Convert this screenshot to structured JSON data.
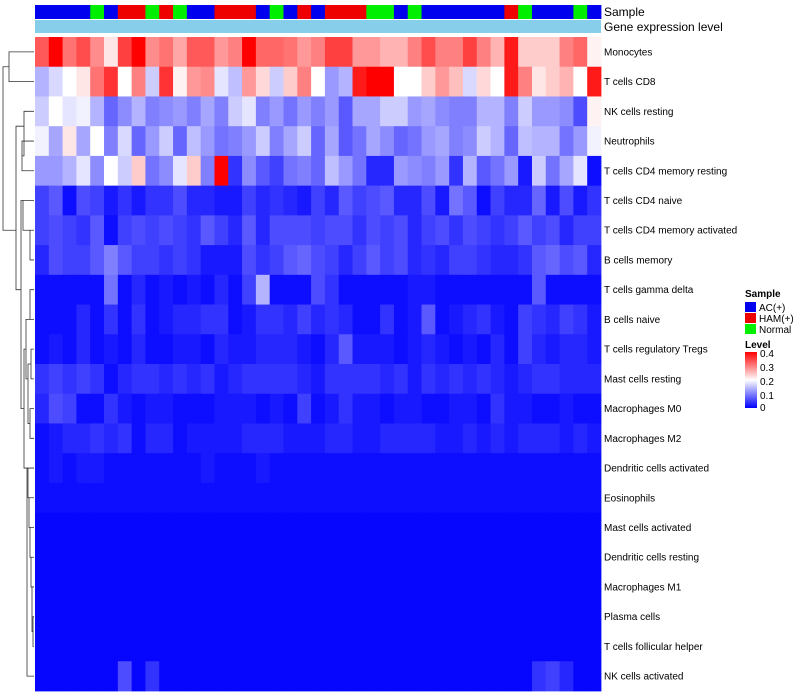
{
  "chart_data": {
    "type": "heatmap",
    "annotation_labels": [
      "Sample",
      "Gene expression level"
    ],
    "sample_legend": {
      "title": "Sample",
      "entries": [
        {
          "label": "AC(+)",
          "color": "#0000ee"
        },
        {
          "label": "HAM(+)",
          "color": "#ee0000"
        },
        {
          "label": "Normal",
          "color": "#00ee00"
        }
      ]
    },
    "level_legend": {
      "title": "Level",
      "ticks": [
        "0.4",
        "0.3",
        "0.2",
        "0.1",
        "0"
      ],
      "tick_values": [
        0.4,
        0.3,
        0.2,
        0.1,
        0
      ],
      "range": [
        0,
        0.4
      ],
      "colors": [
        "#0000ff",
        "#ffffff",
        "#ff0000"
      ]
    },
    "expression_bar_color": "#87ceeb",
    "sample_groups": "AAAANAHHNHNAAHHHANAHAHHHNNANAAAAAAHNAAANA",
    "rows": [
      {
        "name": "Monocytes",
        "values": [
          0.33,
          0.4,
          0.31,
          0.34,
          0.29,
          0.22,
          0.35,
          0.4,
          0.29,
          0.31,
          0.27,
          0.33,
          0.33,
          0.28,
          0.3,
          0.4,
          0.32,
          0.32,
          0.31,
          0.28,
          0.3,
          0.35,
          0.35,
          0.28,
          0.28,
          0.26,
          0.26,
          0.3,
          0.34,
          0.3,
          0.3,
          0.35,
          0.3,
          0.26,
          0.38,
          0.24,
          0.24,
          0.24,
          0.3,
          0.32,
          0.21
        ]
      },
      {
        "name": "T cells CD8",
        "values": [
          0.14,
          0.17,
          0.2,
          0.22,
          0.31,
          0.36,
          0.2,
          0.3,
          0.16,
          0.36,
          0.21,
          0.28,
          0.29,
          0.18,
          0.15,
          0.28,
          0.23,
          0.16,
          0.24,
          0.3,
          0.2,
          0.12,
          0.14,
          0.38,
          0.4,
          0.4,
          0.2,
          0.2,
          0.24,
          0.28,
          0.25,
          0.17,
          0.23,
          0.2,
          0.38,
          0.3,
          0.22,
          0.24,
          0.26,
          0.2,
          0.38
        ]
      },
      {
        "name": "NK cells resting",
        "values": [
          0.16,
          0.2,
          0.18,
          0.19,
          0.14,
          0.08,
          0.11,
          0.14,
          0.1,
          0.11,
          0.12,
          0.1,
          0.13,
          0.1,
          0.16,
          0.18,
          0.1,
          0.12,
          0.09,
          0.12,
          0.1,
          0.12,
          0.07,
          0.13,
          0.13,
          0.16,
          0.16,
          0.12,
          0.13,
          0.11,
          0.1,
          0.1,
          0.14,
          0.14,
          0.1,
          0.16,
          0.12,
          0.12,
          0.11,
          0.06,
          0.21
        ]
      },
      {
        "name": "Neutrophils",
        "values": [
          0.19,
          0.13,
          0.22,
          0.13,
          0.2,
          0.1,
          0.17,
          0.08,
          0.12,
          0.16,
          0.08,
          0.15,
          0.12,
          0.09,
          0.1,
          0.12,
          0.16,
          0.1,
          0.13,
          0.16,
          0.08,
          0.13,
          0.07,
          0.09,
          0.13,
          0.11,
          0.08,
          0.09,
          0.12,
          0.13,
          0.1,
          0.11,
          0.16,
          0.14,
          0.08,
          0.15,
          0.14,
          0.14,
          0.09,
          0.12,
          0.19
        ]
      },
      {
        "name": "T cells CD4 memory resting",
        "values": [
          0.12,
          0.12,
          0.14,
          0.18,
          0.11,
          0.2,
          0.16,
          0.24,
          0.09,
          0.11,
          0.18,
          0.24,
          0.1,
          0.4,
          0.04,
          0.11,
          0.07,
          0.05,
          0.09,
          0.1,
          0.08,
          0.15,
          0.12,
          0.09,
          0.03,
          0.03,
          0.12,
          0.11,
          0.1,
          0.12,
          0.04,
          0.14,
          0.07,
          0.09,
          0.12,
          0.02,
          0.16,
          0.09,
          0.13,
          0.18,
          0.01
        ]
      },
      {
        "name": "T cells CD4 naive",
        "values": [
          0.05,
          0.07,
          0.01,
          0.06,
          0.05,
          0.02,
          0.04,
          0.02,
          0.04,
          0.04,
          0.06,
          0.03,
          0.03,
          0.02,
          0.02,
          0.05,
          0.03,
          0.04,
          0.03,
          0.02,
          0.05,
          0.03,
          0.07,
          0.05,
          0.06,
          0.07,
          0.03,
          0.03,
          0.06,
          0.02,
          0.09,
          0.07,
          0.01,
          0.05,
          0.03,
          0.03,
          0.08,
          0.02,
          0.06,
          0.02,
          0.04
        ]
      },
      {
        "name": "T cells CD4 memory activated",
        "values": [
          0.05,
          0.06,
          0.05,
          0.04,
          0.07,
          0.01,
          0.05,
          0.06,
          0.05,
          0.06,
          0.05,
          0.04,
          0.07,
          0.05,
          0.03,
          0.07,
          0.03,
          0.06,
          0.06,
          0.06,
          0.05,
          0.06,
          0.06,
          0.04,
          0.06,
          0.05,
          0.06,
          0.03,
          0.05,
          0.06,
          0.04,
          0.06,
          0.05,
          0.04,
          0.05,
          0.07,
          0.05,
          0.06,
          0.03,
          0.05,
          0.05
        ]
      },
      {
        "name": "B cells memory",
        "values": [
          0.03,
          0.06,
          0.05,
          0.05,
          0.07,
          0.1,
          0.07,
          0.05,
          0.05,
          0.04,
          0.05,
          0.04,
          0.02,
          0.02,
          0.02,
          0.06,
          0.04,
          0.05,
          0.07,
          0.08,
          0.06,
          0.05,
          0.03,
          0.05,
          0.07,
          0.05,
          0.06,
          0.03,
          0.04,
          0.03,
          0.05,
          0.05,
          0.04,
          0.03,
          0.03,
          0.04,
          0.07,
          0.08,
          0.06,
          0.07,
          0.03
        ]
      },
      {
        "name": "T cells gamma delta",
        "values": [
          0.01,
          0.01,
          0.01,
          0.01,
          0.01,
          0.09,
          0.01,
          0.03,
          0.01,
          0.02,
          0.01,
          0.02,
          0.01,
          0.03,
          0.01,
          0.05,
          0.14,
          0.01,
          0.01,
          0.01,
          0.06,
          0.04,
          0.01,
          0.01,
          0.01,
          0.01,
          0.01,
          0.02,
          0.02,
          0.01,
          0.01,
          0.01,
          0.01,
          0.01,
          0.01,
          0.01,
          0.07,
          0.01,
          0.01,
          0.01,
          0.01
        ]
      },
      {
        "name": "B cells naive",
        "values": [
          0.01,
          0.01,
          0.01,
          0.03,
          0.01,
          0.04,
          0.01,
          0.04,
          0.01,
          0.02,
          0.03,
          0.03,
          0.04,
          0.04,
          0.01,
          0.02,
          0.04,
          0.04,
          0.03,
          0.05,
          0.03,
          0.04,
          0.03,
          0.01,
          0.01,
          0.04,
          0.01,
          0.02,
          0.07,
          0.01,
          0.02,
          0.03,
          0.04,
          0.02,
          0.01,
          0.05,
          0.04,
          0.03,
          0.05,
          0.04,
          0.02
        ]
      },
      {
        "name": "T cells regulatory  Tregs",
        "values": [
          0.01,
          0.02,
          0.01,
          0.03,
          0.01,
          0.02,
          0.01,
          0.03,
          0.01,
          0.01,
          0.02,
          0.02,
          0.01,
          0.03,
          0.02,
          0.02,
          0.03,
          0.03,
          0.03,
          0.02,
          0.01,
          0.03,
          0.07,
          0.02,
          0.02,
          0.02,
          0.01,
          0.02,
          0.03,
          0.02,
          0.01,
          0.02,
          0.01,
          0.03,
          0.01,
          0.05,
          0.03,
          0.02,
          0.03,
          0.03,
          0.02
        ]
      },
      {
        "name": "Mast cells resting",
        "values": [
          0.04,
          0.05,
          0.04,
          0.05,
          0.04,
          0.01,
          0.03,
          0.04,
          0.04,
          0.03,
          0.04,
          0.03,
          0.04,
          0.02,
          0.03,
          0.04,
          0.04,
          0.04,
          0.04,
          0.03,
          0.02,
          0.04,
          0.04,
          0.04,
          0.04,
          0.03,
          0.04,
          0.02,
          0.04,
          0.03,
          0.04,
          0.03,
          0.04,
          0.03,
          0.02,
          0.03,
          0.04,
          0.04,
          0.03,
          0.03,
          0.03
        ]
      },
      {
        "name": "Macrophages M0",
        "values": [
          0.03,
          0.06,
          0.05,
          0.01,
          0.01,
          0.04,
          0.02,
          0.01,
          0.02,
          0.02,
          0.01,
          0.01,
          0.01,
          0.02,
          0.02,
          0.02,
          0.01,
          0.02,
          0.01,
          0.05,
          0.01,
          0.02,
          0.04,
          0.02,
          0.02,
          0.01,
          0.02,
          0.02,
          0.01,
          0.01,
          0.02,
          0.02,
          0.01,
          0.04,
          0.02,
          0.02,
          0.01,
          0.01,
          0.02,
          0.01,
          0.01
        ]
      },
      {
        "name": "Macrophages M2",
        "values": [
          0.01,
          0.02,
          0.03,
          0.03,
          0.04,
          0.03,
          0.04,
          0.01,
          0.03,
          0.03,
          0.01,
          0.02,
          0.02,
          0.02,
          0.02,
          0.03,
          0.03,
          0.03,
          0.02,
          0.02,
          0.02,
          0.03,
          0.03,
          0.02,
          0.02,
          0.03,
          0.03,
          0.03,
          0.03,
          0.02,
          0.02,
          0.03,
          0.02,
          0.03,
          0.02,
          0.03,
          0.03,
          0.03,
          0.02,
          0.03,
          0.02
        ]
      },
      {
        "name": "Dendritic cells activated",
        "values": [
          0.01,
          0.02,
          0.01,
          0.02,
          0.02,
          0.01,
          0.01,
          0.01,
          0.01,
          0.01,
          0.01,
          0.01,
          0.02,
          0.01,
          0.01,
          0.01,
          0.02,
          0.01,
          0.01,
          0.01,
          0.01,
          0.01,
          0.01,
          0.01,
          0.01,
          0.01,
          0.01,
          0.01,
          0.01,
          0.01,
          0.01,
          0.01,
          0.01,
          0.01,
          0.01,
          0.01,
          0.01,
          0.01,
          0.01,
          0.01,
          0.01
        ]
      },
      {
        "name": "Eosinophils",
        "values": [
          0.01,
          0.01,
          0.01,
          0.01,
          0.01,
          0.01,
          0.01,
          0.01,
          0.01,
          0.01,
          0.01,
          0.01,
          0.01,
          0.01,
          0.01,
          0.01,
          0.01,
          0.01,
          0.01,
          0.01,
          0.01,
          0.01,
          0.01,
          0.01,
          0.01,
          0.01,
          0.01,
          0.01,
          0.01,
          0.01,
          0.01,
          0.01,
          0.01,
          0.01,
          0.01,
          0.01,
          0.01,
          0.01,
          0.01,
          0.01,
          0.01
        ]
      },
      {
        "name": "Mast cells activated",
        "values": [
          0.005,
          0.005,
          0.005,
          0.005,
          0.005,
          0.005,
          0.005,
          0.005,
          0.005,
          0.005,
          0.005,
          0.005,
          0.005,
          0.005,
          0.005,
          0.005,
          0.005,
          0.005,
          0.005,
          0.005,
          0.005,
          0.005,
          0.005,
          0.005,
          0.005,
          0.005,
          0.005,
          0.005,
          0.005,
          0.005,
          0.005,
          0.005,
          0.005,
          0.005,
          0.005,
          0.005,
          0.005,
          0.005,
          0.005,
          0.005,
          0.005
        ]
      },
      {
        "name": "Dendritic cells resting",
        "values": [
          0.005,
          0.005,
          0.005,
          0.005,
          0.005,
          0.005,
          0.005,
          0.005,
          0.005,
          0.005,
          0.005,
          0.005,
          0.005,
          0.005,
          0.005,
          0.005,
          0.005,
          0.005,
          0.005,
          0.005,
          0.005,
          0.005,
          0.005,
          0.005,
          0.005,
          0.005,
          0.005,
          0.005,
          0.005,
          0.005,
          0.005,
          0.005,
          0.005,
          0.005,
          0.005,
          0.005,
          0.005,
          0.005,
          0.005,
          0.005,
          0.005
        ]
      },
      {
        "name": "Macrophages M1",
        "values": [
          0.005,
          0.005,
          0.005,
          0.005,
          0.005,
          0.005,
          0.005,
          0.005,
          0.005,
          0.005,
          0.005,
          0.005,
          0.005,
          0.005,
          0.005,
          0.005,
          0.005,
          0.005,
          0.005,
          0.005,
          0.005,
          0.005,
          0.005,
          0.005,
          0.005,
          0.005,
          0.005,
          0.005,
          0.005,
          0.005,
          0.005,
          0.005,
          0.005,
          0.005,
          0.005,
          0.005,
          0.005,
          0.005,
          0.005,
          0.005,
          0.005
        ]
      },
      {
        "name": "Plasma cells",
        "values": [
          0.005,
          0.005,
          0.005,
          0.005,
          0.005,
          0.005,
          0.005,
          0.005,
          0.005,
          0.005,
          0.005,
          0.005,
          0.005,
          0.005,
          0.005,
          0.005,
          0.005,
          0.005,
          0.005,
          0.005,
          0.005,
          0.005,
          0.005,
          0.005,
          0.005,
          0.005,
          0.005,
          0.005,
          0.005,
          0.005,
          0.005,
          0.005,
          0.005,
          0.005,
          0.005,
          0.005,
          0.005,
          0.005,
          0.005,
          0.005,
          0.005
        ]
      },
      {
        "name": "T cells follicular helper",
        "values": [
          0.005,
          0.005,
          0.005,
          0.005,
          0.005,
          0.005,
          0.005,
          0.005,
          0.005,
          0.005,
          0.005,
          0.005,
          0.005,
          0.005,
          0.005,
          0.005,
          0.005,
          0.005,
          0.005,
          0.005,
          0.005,
          0.005,
          0.005,
          0.005,
          0.005,
          0.005,
          0.005,
          0.005,
          0.005,
          0.005,
          0.005,
          0.005,
          0.005,
          0.005,
          0.005,
          0.005,
          0.005,
          0.005,
          0.005,
          0.005,
          0.005
        ]
      },
      {
        "name": "NK cells activated",
        "values": [
          0.005,
          0.005,
          0.005,
          0.005,
          0.005,
          0.005,
          0.06,
          0.005,
          0.04,
          0.005,
          0.005,
          0.005,
          0.005,
          0.005,
          0.005,
          0.005,
          0.005,
          0.005,
          0.005,
          0.005,
          0.005,
          0.005,
          0.005,
          0.005,
          0.005,
          0.005,
          0.005,
          0.005,
          0.005,
          0.005,
          0.005,
          0.005,
          0.005,
          0.005,
          0.005,
          0.005,
          0.04,
          0.05,
          0.03,
          0.005,
          0.005
        ]
      }
    ]
  }
}
